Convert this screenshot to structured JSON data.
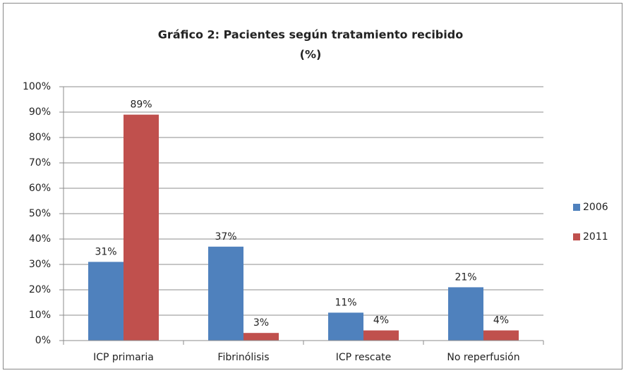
{
  "chart_data": {
    "type": "bar",
    "title": "Gráfico 2: Pacientes según tratamiento recibido",
    "subtitle": "(%)",
    "categories": [
      "ICP primaria",
      "Fibrinólisis",
      "ICP rescate",
      "No reperfusión"
    ],
    "series": [
      {
        "name": "2006",
        "color": "#4f81bd",
        "values": [
          31,
          37,
          11,
          21
        ],
        "value_labels": [
          "31%",
          "37%",
          "11%",
          "21%"
        ]
      },
      {
        "name": "2011",
        "color": "#c0504d",
        "values": [
          89,
          3,
          4,
          4
        ],
        "value_labels": [
          "89%",
          "3%",
          "4%",
          "4%"
        ]
      }
    ],
    "ylim": [
      0,
      100
    ],
    "yticks": [
      {
        "value": 0,
        "label": "0%"
      },
      {
        "value": 10,
        "label": "10%"
      },
      {
        "value": 20,
        "label": "20%"
      },
      {
        "value": 30,
        "label": "30%"
      },
      {
        "value": 40,
        "label": "40%"
      },
      {
        "value": 50,
        "label": "50%"
      },
      {
        "value": 60,
        "label": "60%"
      },
      {
        "value": 70,
        "label": "70%"
      },
      {
        "value": 80,
        "label": "80%"
      },
      {
        "value": 90,
        "label": "90%"
      },
      {
        "value": 100,
        "label": "100%"
      }
    ],
    "grid": true,
    "legend": "right"
  }
}
